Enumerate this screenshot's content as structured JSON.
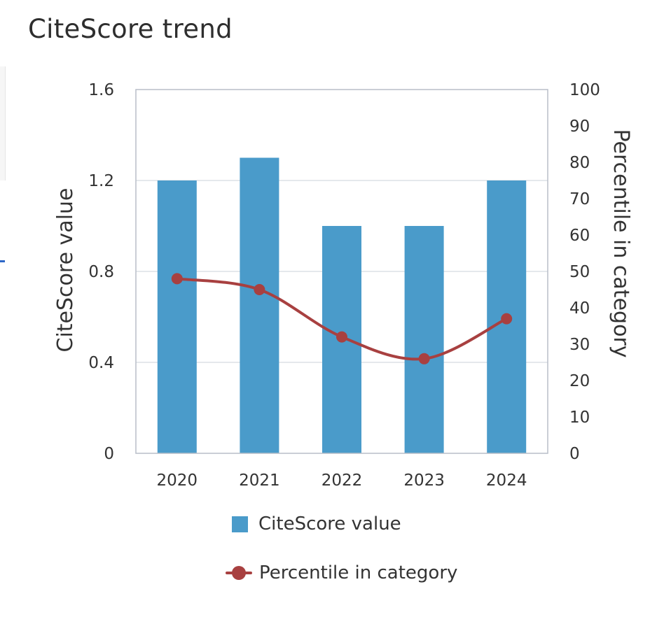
{
  "page": {
    "title": "CiteScore trend"
  },
  "chart_data": {
    "type": "bar",
    "categories": [
      "2020",
      "2021",
      "2022",
      "2023",
      "2024"
    ],
    "series": [
      {
        "name": "CiteScore value",
        "type": "bar",
        "axis": "left",
        "color": "#4a9bca",
        "values": [
          1.2,
          1.3,
          1.0,
          1.0,
          1.2
        ]
      },
      {
        "name": "Percentile in category",
        "type": "line",
        "axis": "right",
        "color": "#a84040",
        "smooth": true,
        "values": [
          48,
          45,
          32,
          26,
          37
        ]
      }
    ],
    "y_left": {
      "label": "CiteScore value",
      "range": [
        0,
        1.6
      ],
      "ticks": [
        "0",
        "0.4",
        "0.8",
        "1.2",
        "1.6"
      ]
    },
    "y_right": {
      "label": "Percentile in category",
      "range": [
        0,
        100
      ],
      "ticks": [
        "0",
        "10",
        "20",
        "30",
        "40",
        "50",
        "60",
        "70",
        "80",
        "90",
        "100"
      ]
    },
    "grid": true,
    "legend": {
      "position": "bottom"
    }
  }
}
